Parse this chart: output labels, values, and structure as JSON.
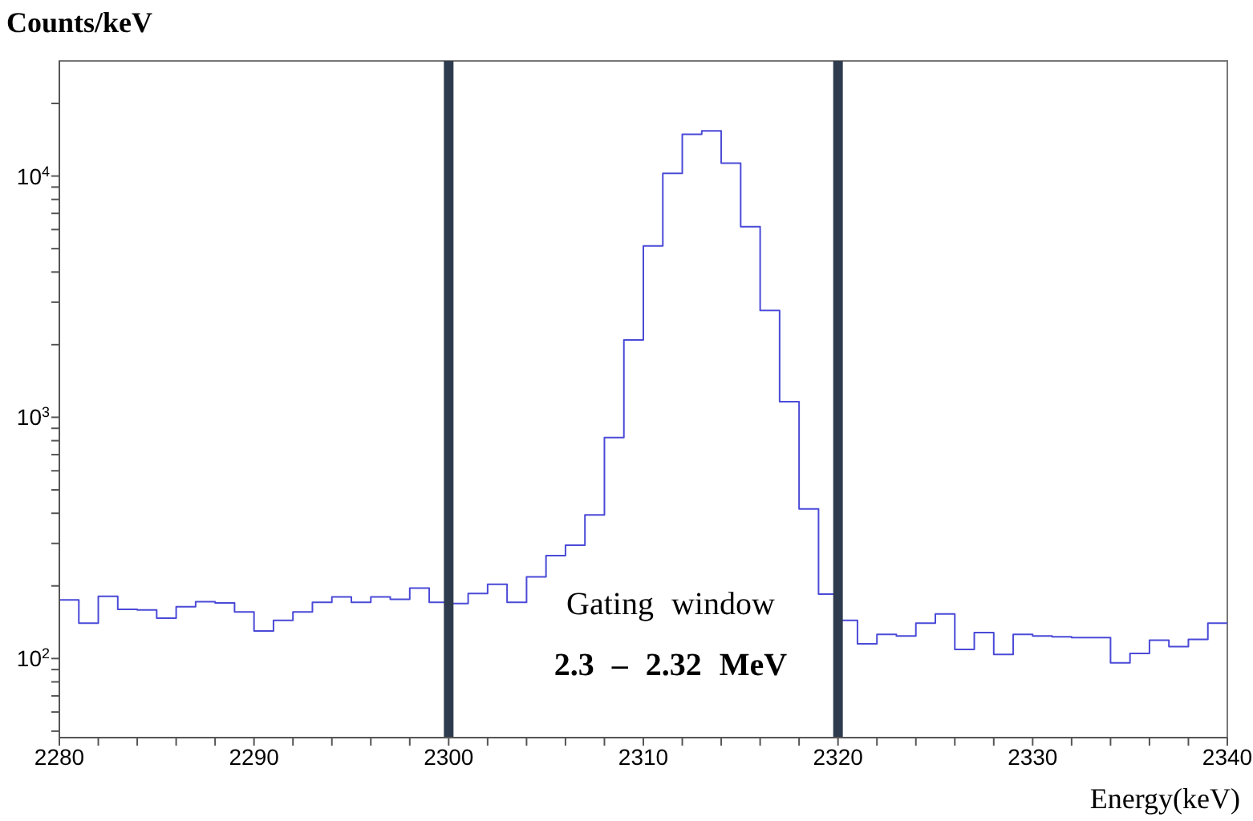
{
  "chart_data": {
    "type": "histogram",
    "xlabel": "Energy(keV)",
    "ylabel": "Counts/keV",
    "bins": [
      2280,
      2281,
      2282,
      2283,
      2284,
      2285,
      2286,
      2287,
      2288,
      2289,
      2290,
      2291,
      2292,
      2293,
      2294,
      2295,
      2296,
      2297,
      2298,
      2299,
      2300,
      2301,
      2302,
      2303,
      2304,
      2305,
      2306,
      2307,
      2308,
      2309,
      2310,
      2311,
      2312,
      2313,
      2314,
      2315,
      2316,
      2317,
      2318,
      2319,
      2320,
      2321,
      2322,
      2323,
      2324,
      2325,
      2326,
      2327,
      2328,
      2329,
      2330,
      2331,
      2332,
      2333,
      2334,
      2335,
      2336,
      2337,
      2338,
      2339,
      2340
    ],
    "values": [
      175,
      140,
      181,
      160,
      159,
      147,
      164,
      172,
      170,
      156,
      130,
      144,
      156,
      171,
      180,
      171,
      180,
      176,
      196,
      171,
      169,
      186,
      203,
      171,
      218,
      267,
      295,
      394,
      824,
      2090,
      5130,
      10260,
      14900,
      15400,
      11300,
      6170,
      2770,
      1160,
      417,
      185,
      144,
      115,
      126,
      124,
      140,
      153,
      109,
      128,
      104,
      126,
      124,
      123,
      122,
      122,
      96,
      105,
      119,
      112,
      120,
      140
    ],
    "color": "#4a4ad8",
    "log": "y",
    "grid": false,
    "legend": false,
    "xlim": [
      2280,
      2340
    ],
    "ylim": [
      47,
      30000
    ],
    "xticks": [
      2280,
      {
        "value": 2282,
        "label": null
      },
      {
        "value": 2284,
        "label": null
      },
      {
        "value": 2286,
        "label": null
      },
      {
        "value": 2288,
        "label": null
      },
      2290,
      {
        "value": 2292,
        "label": null
      },
      {
        "value": 2294,
        "label": null
      },
      {
        "value": 2296,
        "label": null
      },
      {
        "value": 2298,
        "label": null
      },
      2300,
      {
        "value": 2302,
        "label": null
      },
      {
        "value": 2304,
        "label": null
      },
      {
        "value": 2306,
        "label": null
      },
      {
        "value": 2308,
        "label": null
      },
      2310,
      {
        "value": 2312,
        "label": null
      },
      {
        "value": 2314,
        "label": null
      },
      {
        "value": 2316,
        "label": null
      },
      {
        "value": 2318,
        "label": null
      },
      2320,
      {
        "value": 2322,
        "label": null
      },
      {
        "value": 2324,
        "label": null
      },
      {
        "value": 2326,
        "label": null
      },
      {
        "value": 2328,
        "label": null
      },
      2330,
      {
        "value": 2332,
        "label": null
      },
      {
        "value": 2334,
        "label": null
      },
      {
        "value": 2336,
        "label": null
      },
      {
        "value": 2338,
        "label": null
      },
      2340
    ],
    "yticks": [
      {
        "value": 50,
        "label": null
      },
      {
        "value": 60,
        "label": null
      },
      {
        "value": 70,
        "label": null
      },
      {
        "value": 80,
        "label": null
      },
      {
        "value": 90,
        "label": null
      },
      {
        "value": 100,
        "label": "10$^{2}$"
      },
      {
        "value": 200,
        "label": null
      },
      {
        "value": 300,
        "label": null
      },
      {
        "value": 400,
        "label": null
      },
      {
        "value": 500,
        "label": null
      },
      {
        "value": 600,
        "label": null
      },
      {
        "value": 700,
        "label": null
      },
      {
        "value": 800,
        "label": null
      },
      {
        "value": 900,
        "label": null
      },
      {
        "value": 1000,
        "label": "10$^{3}$"
      },
      {
        "value": 2000,
        "label": null
      },
      {
        "value": 3000,
        "label": null
      },
      {
        "value": 4000,
        "label": null
      },
      {
        "value": 5000,
        "label": null
      },
      {
        "value": 6000,
        "label": null
      },
      {
        "value": 7000,
        "label": null
      },
      {
        "value": 8000,
        "label": null
      },
      {
        "value": 9000,
        "label": null
      },
      {
        "value": 10000,
        "label": "10$^{4}$"
      },
      {
        "value": 20000,
        "label": null
      }
    ],
    "ref_lines": [
      {
        "axis": "x",
        "value": 2300,
        "color": "#2e3b4e"
      },
      {
        "axis": "x",
        "value": 2320,
        "color": "#2e3b4e"
      }
    ],
    "annotations": [
      "Gating window",
      "2.3 – 2.32 MeV"
    ]
  }
}
